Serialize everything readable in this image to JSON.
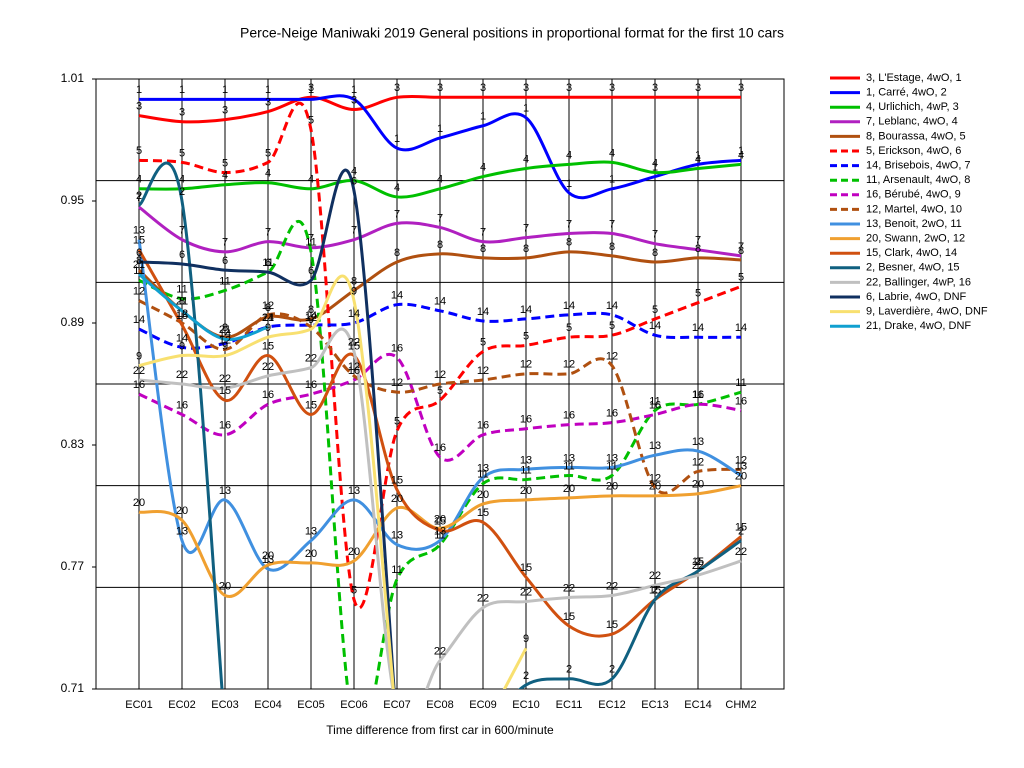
{
  "chart_data": {
    "type": "line",
    "title": "Perce-Neige Maniwaki 2019  General positions in proportional format for the first 10 cars",
    "x_label": "Time difference from first car in 600/minute",
    "categories": [
      "EC01",
      "EC02",
      "EC03",
      "EC04",
      "EC05",
      "EC06",
      "EC07",
      "EC08",
      "EC09",
      "EC10",
      "EC11",
      "EC12",
      "EC13",
      "EC14",
      "CHM2"
    ],
    "ylim": [
      0.71,
      1.01
    ],
    "yticks": [
      1.01,
      0.95,
      0.89,
      0.83,
      0.77,
      0.71
    ],
    "ygrid": [
      0.76,
      0.81,
      0.86,
      0.91,
      0.96
    ],
    "xgrid": true,
    "legend": "right",
    "series": [
      {
        "name": "3, L'Estage, 4wO, 1",
        "label": "3",
        "color": "#ff0000",
        "dashed": false,
        "values": [
          0.992,
          0.989,
          0.99,
          0.994,
          1.001,
          0.995,
          1.001,
          1.001,
          1.001,
          1.001,
          1.001,
          1.001,
          1.001,
          1.001,
          1.001
        ]
      },
      {
        "name": "1, Carré, 4wO, 2",
        "label": "1",
        "color": "#0000ff",
        "dashed": false,
        "values": [
          1.0,
          1.0,
          1.0,
          1.0,
          1.0,
          1.0,
          0.976,
          0.981,
          0.987,
          0.991,
          0.954,
          0.956,
          0.962,
          0.968,
          0.97
        ]
      },
      {
        "name": "4, Urlichich, 4wP, 3",
        "label": "4",
        "color": "#00c000",
        "dashed": false,
        "values": [
          0.956,
          0.956,
          0.958,
          0.959,
          0.956,
          0.96,
          0.952,
          0.956,
          0.962,
          0.966,
          0.968,
          0.969,
          0.964,
          0.966,
          0.968
        ]
      },
      {
        "name": "7, Leblanc, 4wO, 4",
        "label": "7",
        "color": "#b020c0",
        "dashed": false,
        "values": [
          0.947,
          0.931,
          0.925,
          0.93,
          0.927,
          0.931,
          0.939,
          0.937,
          0.93,
          0.932,
          0.934,
          0.934,
          0.929,
          0.926,
          0.923
        ]
      },
      {
        "name": "8, Bourassa, 4wO, 5",
        "label": "8",
        "color": "#b05010",
        "dashed": false,
        "values": [
          0.916,
          0.896,
          0.883,
          0.893,
          0.892,
          0.906,
          0.92,
          0.924,
          0.922,
          0.922,
          0.925,
          0.923,
          0.92,
          0.922,
          0.921
        ]
      },
      {
        "name": "5, Erickson, 4wO, 6",
        "label": "5",
        "color": "#ff0000",
        "dashed": true,
        "values": [
          0.97,
          0.969,
          0.964,
          0.969,
          0.985,
          0.754,
          0.837,
          0.852,
          0.876,
          0.879,
          0.883,
          0.884,
          0.892,
          0.9,
          0.908
        ]
      },
      {
        "name": "14, Brisebois, 4wO, 7",
        "label": "14",
        "color": "#0000ff",
        "dashed": true,
        "values": [
          0.887,
          0.878,
          0.88,
          0.888,
          0.889,
          0.89,
          0.899,
          0.896,
          0.891,
          0.892,
          0.894,
          0.894,
          0.884,
          0.883,
          0.883
        ]
      },
      {
        "name": "11, Arsenault, 4wO, 8",
        "label": "11",
        "color": "#00c000",
        "dashed": true,
        "values": [
          0.911,
          0.902,
          0.906,
          0.915,
          0.925,
          0.69,
          0.764,
          0.781,
          0.811,
          0.813,
          0.815,
          0.815,
          0.847,
          0.85,
          0.856
        ]
      },
      {
        "name": "16, Bérubé, 4wO, 9",
        "label": "16",
        "color": "#c000c0",
        "dashed": true,
        "values": [
          0.855,
          0.845,
          0.835,
          0.85,
          0.855,
          0.862,
          0.873,
          0.824,
          0.835,
          0.838,
          0.84,
          0.841,
          0.845,
          0.85,
          0.847
        ]
      },
      {
        "name": "12, Martel, 4wO, 10",
        "label": "12",
        "color": "#b05010",
        "dashed": true,
        "values": [
          0.901,
          0.89,
          0.877,
          0.894,
          0.888,
          0.864,
          0.856,
          0.86,
          0.862,
          0.865,
          0.865,
          0.869,
          0.809,
          0.817,
          0.818
        ]
      },
      {
        "name": "13, Benoit, 2wO, 11",
        "label": "13",
        "color": "#4090e0",
        "dashed": false,
        "values": [
          0.931,
          0.783,
          0.803,
          0.769,
          0.783,
          0.803,
          0.781,
          0.783,
          0.814,
          0.818,
          0.819,
          0.819,
          0.825,
          0.827,
          0.815
        ]
      },
      {
        "name": "20, Swann, 2wO, 12",
        "label": "20",
        "color": "#f0a030",
        "dashed": false,
        "values": [
          0.797,
          0.793,
          0.756,
          0.771,
          0.772,
          0.773,
          0.799,
          0.789,
          0.801,
          0.803,
          0.804,
          0.805,
          0.805,
          0.806,
          0.81
        ]
      },
      {
        "name": "15, Clark, 4wO, 14",
        "label": "15",
        "color": "#d05010",
        "dashed": false,
        "values": [
          0.926,
          0.889,
          0.852,
          0.874,
          0.845,
          0.874,
          0.808,
          0.788,
          0.792,
          0.765,
          0.741,
          0.737,
          0.754,
          0.768,
          0.785
        ]
      },
      {
        "name": "2, Besner, 4wO, 15",
        "label": "2",
        "color": "#106080",
        "dashed": false,
        "values": [
          0.948,
          0.95,
          0.69,
          null,
          null,
          null,
          null,
          null,
          0.69,
          0.712,
          0.715,
          0.715,
          0.754,
          0.768,
          0.783
        ]
      },
      {
        "name": "22, Ballinger, 4wP, 16",
        "label": "22",
        "color": "#c0c0c0",
        "dashed": false,
        "values": [
          0.862,
          0.86,
          0.858,
          0.864,
          0.868,
          0.876,
          0.7,
          0.724,
          0.75,
          0.753,
          0.755,
          0.756,
          0.761,
          0.766,
          0.773
        ]
      },
      {
        "name": "6, Labrie, 4wO, DNF",
        "label": "6",
        "color": "#103060",
        "dashed": false,
        "values": [
          0.92,
          0.919,
          0.916,
          0.915,
          0.911,
          0.955,
          0.69,
          null,
          null,
          null,
          null,
          null,
          null,
          null,
          null
        ]
      },
      {
        "name": "9, Laverdière, 4wO, DNF",
        "label": "9",
        "color": "#f8e070",
        "dashed": false,
        "values": [
          0.869,
          0.874,
          0.874,
          0.883,
          0.887,
          0.901,
          0.69,
          null,
          0.69,
          0.73,
          null,
          null,
          null,
          null,
          null
        ]
      },
      {
        "name": "21, Drake, 4wO, DNF",
        "label": "21",
        "color": "#10a0d0",
        "dashed": false,
        "values": [
          0.914,
          0.896,
          0.882,
          0.888,
          null,
          null,
          null,
          null,
          null,
          null,
          null,
          null,
          null,
          null,
          null
        ]
      }
    ]
  }
}
